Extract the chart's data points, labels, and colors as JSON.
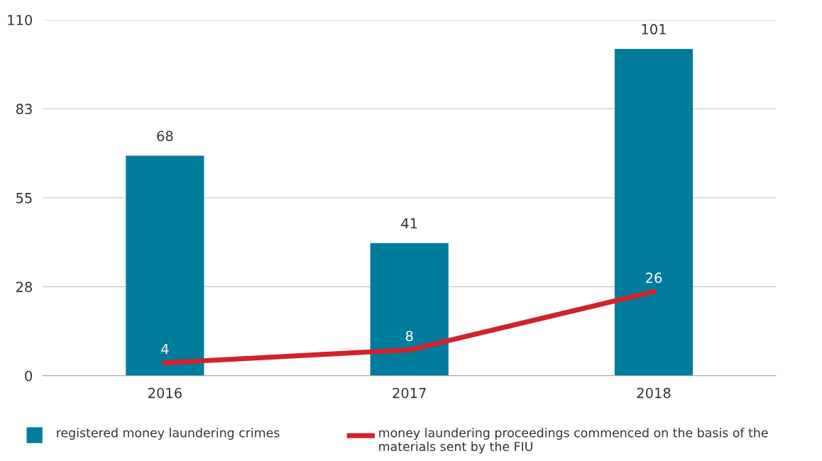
{
  "chart_data": {
    "type": "bar",
    "categories": [
      "2016",
      "2017",
      "2018"
    ],
    "series": [
      {
        "name": "registered money laundering crimes",
        "color": "#007c9c",
        "values": [
          68,
          41,
          101
        ]
      },
      {
        "name": "money laundering proceedings commenced on the basis of the materials sent by the FIU",
        "type": "line",
        "color": "#d3222a",
        "values": [
          4,
          8,
          26
        ]
      }
    ],
    "ylim": [
      0,
      110
    ],
    "yticks": [
      0,
      {
        "value": 27.5,
        "label": "28"
      },
      55,
      {
        "value": 82.5,
        "label": "83"
      },
      110
    ],
    "grid": "y",
    "legend": "bottom left",
    "data_labels": true,
    "marker": "none",
    "line_style": "solid"
  }
}
